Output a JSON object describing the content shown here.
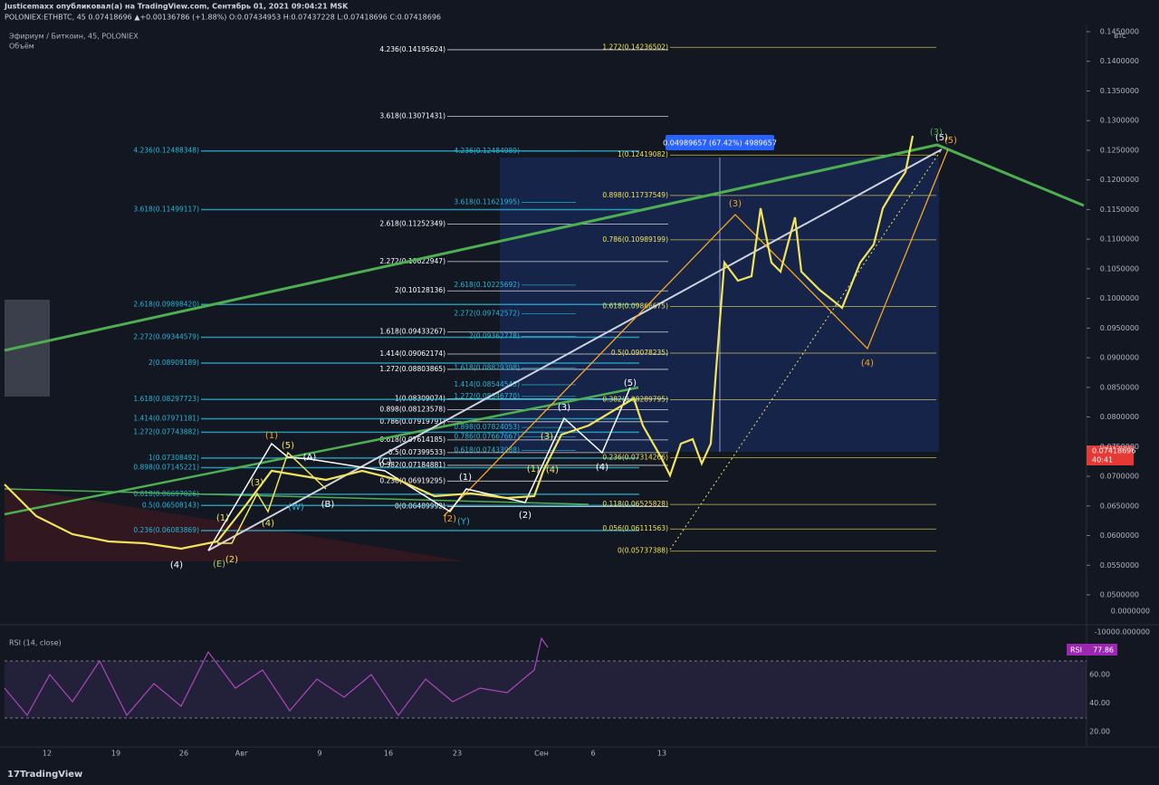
{
  "header": {
    "author_line": "Justicemaxx опубликовал(а) на TradingView.com, Сентябрь 01, 2021 09:04:21 MSK",
    "symbol_line": "POLONIEX:ETHBTC, 45  0.07418696 ▲+0.00136786 (+1.88%) O:0.07434953 H:0.07437228 L:0.07418696 C:0.07418696"
  },
  "legend": {
    "title": "Эфириум / Биткоин, 45, POLONIEX",
    "volume": "Объём"
  },
  "currency": "BTC",
  "price_ticks": [
    {
      "value": 0.145,
      "label": "0.1450000"
    },
    {
      "value": 0.14,
      "label": "0.1400000"
    },
    {
      "value": 0.135,
      "label": "0.1350000"
    },
    {
      "value": 0.13,
      "label": "0.1300000"
    },
    {
      "value": 0.125,
      "label": "0.1250000"
    },
    {
      "value": 0.12,
      "label": "0.1200000"
    },
    {
      "value": 0.115,
      "label": "0.1150000"
    },
    {
      "value": 0.11,
      "label": "0.1100000"
    },
    {
      "value": 0.105,
      "label": "0.1050000"
    },
    {
      "value": 0.1,
      "label": "0.1000000"
    },
    {
      "value": 0.095,
      "label": "0.0950000"
    },
    {
      "value": 0.09,
      "label": "0.0900000"
    },
    {
      "value": 0.085,
      "label": "0.0850000"
    },
    {
      "value": 0.08,
      "label": "0.0800000"
    },
    {
      "value": 0.075,
      "label": "0.0750000"
    },
    {
      "value": 0.07,
      "label": "0.0700000"
    },
    {
      "value": 0.065,
      "label": "0.0650000"
    },
    {
      "value": 0.06,
      "label": "0.0600000"
    },
    {
      "value": 0.055,
      "label": "0.0550000"
    },
    {
      "value": 0.05,
      "label": "0.0500000"
    }
  ],
  "volume_ticks": [
    {
      "value": 0,
      "label": "0.0000000"
    },
    {
      "value": -10000,
      "label": "-10000.000000"
    }
  ],
  "last_price": {
    "value": 0.07418696,
    "label": "0.07418696",
    "countdown": "40:41"
  },
  "measure": "0.04989657 (67.42%) 4989657",
  "fib_sets": [
    {
      "color": "#ffffff",
      "levels": [
        {
          "value": 0.14195624,
          "label": "4.236(0.14195624)"
        },
        {
          "value": 0.13071431,
          "label": "3.618(0.13071431)"
        },
        {
          "value": 0.11252349,
          "label": "2.618(0.11252349)"
        },
        {
          "value": 0.10622947,
          "label": "2.272(0.10622947)"
        },
        {
          "value": 0.10128136,
          "label": "2(0.10128136)"
        },
        {
          "value": 0.09433267,
          "label": "1.618(0.09433267)"
        },
        {
          "value": 0.09062174,
          "label": "1.414(0.09062174)"
        },
        {
          "value": 0.08803865,
          "label": "1.272(0.08803865)"
        },
        {
          "value": 0.08309074,
          "label": "1(0.08309074)"
        },
        {
          "value": 0.08123578,
          "label": "0.898(0.08123578)"
        },
        {
          "value": 0.07919791,
          "label": "0.786(0.07919791)"
        },
        {
          "value": 0.07614185,
          "label": "0.618(0.07614185)"
        },
        {
          "value": 0.07399533,
          "label": "0.5(0.07399533)"
        },
        {
          "value": 0.07184881,
          "label": "0.382(0.07184881)"
        },
        {
          "value": 0.06919295,
          "label": "0.236(0.06919295)"
        },
        {
          "value": 0.06489992,
          "label": "0(0.06489992)"
        }
      ]
    },
    {
      "color": "#29b6d6",
      "levels": [
        {
          "value": 0.12488348,
          "label": "4.236(0.12488348)"
        },
        {
          "value": 0.11499117,
          "label": "3.618(0.11499117)"
        },
        {
          "value": 0.0989842,
          "label": "2.618(0.09898420)"
        },
        {
          "value": 0.09344579,
          "label": "2.272(0.09344579)"
        },
        {
          "value": 0.08909189,
          "label": "2(0.08909189)"
        },
        {
          "value": 0.08297723,
          "label": "1.618(0.08297723)"
        },
        {
          "value": 0.07971181,
          "label": "1.414(0.07971181)"
        },
        {
          "value": 0.07743882,
          "label": "1.272(0.07743882)"
        },
        {
          "value": 0.07308492,
          "label": "1(0.07308492)"
        },
        {
          "value": 0.07145221,
          "label": "0.898(0.07145221)"
        },
        {
          "value": 0.06697026,
          "label": "0.618(0.06697026)"
        },
        {
          "value": 0.06508143,
          "label": "0.5(0.06508143)"
        },
        {
          "value": 0.06083869,
          "label": "0.236(0.06083869)"
        }
      ]
    },
    {
      "color": "#29b6d6",
      "levels": [
        {
          "value": 0.12484989,
          "label": "4.236(0.12484989)"
        },
        {
          "value": 0.11621995,
          "label": "3.618(0.11621995)"
        },
        {
          "value": 0.10225692,
          "label": "2.618(0.10225692)"
        },
        {
          "value": 0.09742572,
          "label": "2.272(0.09742572)"
        },
        {
          "value": 0.09362778,
          "label": "2(0.09362778)"
        },
        {
          "value": 0.08829398,
          "label": "1.618(0.08829398)"
        },
        {
          "value": 0.08544545,
          "label": "1.414(0.08544545)"
        },
        {
          "value": 0.0834677,
          "label": "1.272(0.08346770)"
        },
        {
          "value": 0.07824053,
          "label": "0.898(0.07824053)"
        },
        {
          "value": 0.07667667,
          "label": "0.786(0.07667667)"
        },
        {
          "value": 0.07433988,
          "label": "0.618(0.07433988)"
        }
      ]
    },
    {
      "color": "#f2e35c",
      "levels": [
        {
          "value": 0.14236502,
          "label": "1.272(0.14236502)"
        },
        {
          "value": 0.12419082,
          "label": "1(0.12419082)"
        },
        {
          "value": 0.11737549,
          "label": "0.898(0.11737549)"
        },
        {
          "value": 0.10989199,
          "label": "0.786(0.10989199)"
        },
        {
          "value": 0.09866675,
          "label": "0.618(0.09866675)"
        },
        {
          "value": 0.09078235,
          "label": "0.5(0.09078235)"
        },
        {
          "value": 0.08289795,
          "label": "0.382(0.08289795)"
        },
        {
          "value": 0.07314266,
          "label": "0.236(0.07314266)"
        },
        {
          "value": 0.06525828,
          "label": "0.118(0.06525828)"
        },
        {
          "value": 0.06111563,
          "label": "0.056(0.06111563)"
        },
        {
          "value": 0.05737388,
          "label": "0(0.05737388)"
        }
      ]
    }
  ],
  "waves": [
    {
      "text": "(4)",
      "color": "#ffffff"
    },
    {
      "text": "(5)",
      "color": "#ffffff"
    },
    {
      "text": "(3)",
      "color": "#ffffff"
    },
    {
      "text": "(1)",
      "color": "#ffffff"
    },
    {
      "text": "(2)",
      "color": "#ffffff"
    },
    {
      "text": "(4)",
      "color": "#ffffff"
    },
    {
      "text": "(B)",
      "color": "#ffffff"
    },
    {
      "text": "(A)",
      "color": "#ffffff"
    },
    {
      "text": "(C)",
      "color": "#ffffff"
    },
    {
      "text": "(W)",
      "color": "#29b6d6"
    },
    {
      "text": "(Y)",
      "color": "#29b6d6"
    },
    {
      "text": "(E)",
      "color": "#9ccc65"
    },
    {
      "text": "(1)",
      "color": "#f2e35c"
    },
    {
      "text": "(2)",
      "color": "#f2e35c"
    },
    {
      "text": "(3)",
      "color": "#f2e35c"
    },
    {
      "text": "(4)",
      "color": "#f2e35c"
    },
    {
      "text": "(5)",
      "color": "#f2e35c"
    },
    {
      "text": "(1)",
      "color": "#f5a623"
    },
    {
      "text": "(1)",
      "color": "#f2e35c"
    },
    {
      "text": "(3)",
      "color": "#f2e35c"
    },
    {
      "text": "(4)",
      "color": "#f2e35c"
    },
    {
      "text": "(3)",
      "color": "#f5a623"
    },
    {
      "text": "(4)",
      "color": "#f5a623"
    },
    {
      "text": "(5)",
      "color": "#ffffff"
    },
    {
      "text": "(5)",
      "color": "#f5a623"
    },
    {
      "text": "(3)",
      "color": "#4caf50"
    },
    {
      "text": "(2)",
      "color": "#f5a623"
    }
  ],
  "time_axis": [
    "12",
    "19",
    "26",
    "Авг",
    "9",
    "16",
    "23",
    "Сен",
    "6",
    "13"
  ],
  "rsi": {
    "title": "RSI (14, close)",
    "badge": "RSI",
    "value": 77.86,
    "ticks": [
      {
        "value": 60,
        "label": "60.00"
      },
      {
        "value": 40,
        "label": "40.00"
      },
      {
        "value": 20,
        "label": "20.00"
      }
    ]
  },
  "footer": {
    "brand": "TradingView"
  }
}
